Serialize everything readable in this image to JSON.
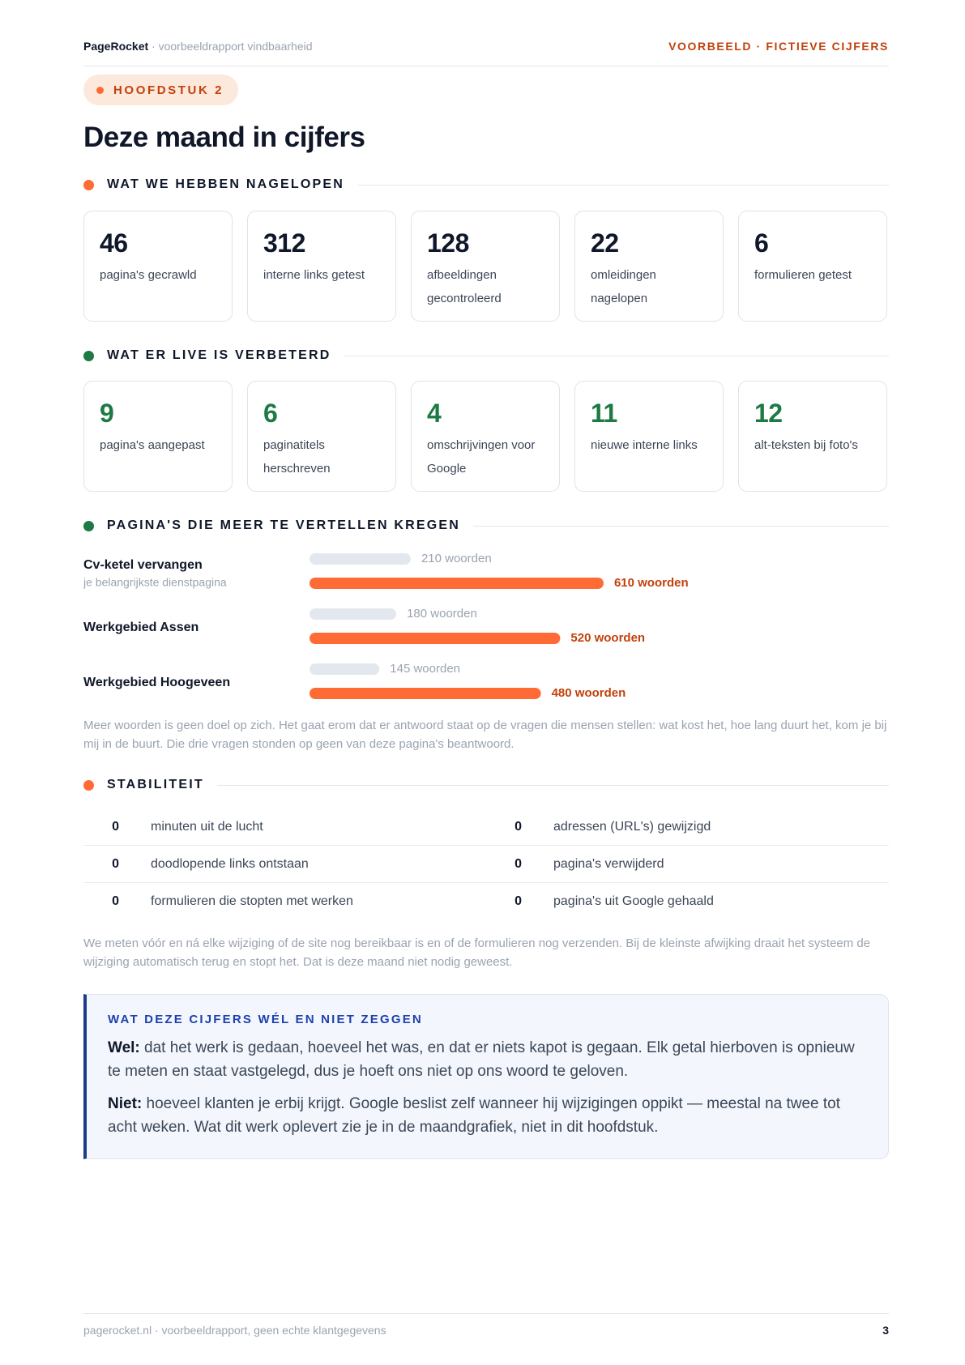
{
  "header": {
    "brand": "PageRocket",
    "subtitle": "· voorbeeldrapport vindbaarheid",
    "badge": "VOORBEELD · FICTIEVE CIJFERS"
  },
  "chapter": "HOOFDSTUK 2",
  "title": "Deze maand in cijfers",
  "checked": {
    "heading": "WAT WE HEBBEN NAGELOPEN",
    "items": [
      {
        "value": 46,
        "label": "pagina's gecrawld"
      },
      {
        "value": 312,
        "label": "interne links getest"
      },
      {
        "value": 128,
        "label": "afbeeldingen gecontroleerd"
      },
      {
        "value": 22,
        "label": "omleidingen nagelopen"
      },
      {
        "value": 6,
        "label": "formulieren getest"
      }
    ]
  },
  "improved": {
    "heading": "WAT ER LIVE IS VERBETERD",
    "items": [
      {
        "value": 9,
        "label": "pagina's aangepast"
      },
      {
        "value": 6,
        "label": "paginatitels herschreven"
      },
      {
        "value": 4,
        "label": "omschrijvingen voor Google"
      },
      {
        "value": 11,
        "label": "nieuwe interne links"
      },
      {
        "value": 12,
        "label": "alt-teksten bij foto's"
      }
    ]
  },
  "pages_heading": "PAGINA'S DIE MEER TE VERTELLEN KREGEN",
  "chart_data": {
    "type": "bar",
    "categories": [
      "Cv-ketel vervangen",
      "Werkgebied Assen",
      "Werkgebied Hoogeveen"
    ],
    "category_notes": [
      "je belangrijkste dienstpagina",
      null,
      null
    ],
    "series": [
      {
        "color": "#e3e8ef",
        "values": [
          210,
          180,
          145
        ],
        "value_labels": [
          "210 woorden",
          "180 woorden",
          "145 woorden"
        ]
      },
      {
        "color": "#ff6b35",
        "values": [
          610,
          520,
          480
        ],
        "value_labels": [
          "610 woorden",
          "520 woorden",
          "480 woorden"
        ]
      }
    ]
  },
  "pages_note": "Meer woorden is geen doel op zich. Het gaat erom dat er antwoord staat op de vragen die mensen stellen: wat kost het, hoe lang duurt het, kom je bij mij in de buurt. Die drie vragen stonden op geen van deze pagina's beantwoord.",
  "stability": {
    "heading": "STABILITEIT",
    "rows": [
      [
        {
          "value": 0,
          "label": "minuten uit de lucht"
        },
        {
          "value": 0,
          "label": "adressen (URL's) gewijzigd"
        }
      ],
      [
        {
          "value": 0,
          "label": "doodlopende links ontstaan"
        },
        {
          "value": 0,
          "label": "pagina's verwijderd"
        }
      ],
      [
        {
          "value": 0,
          "label": "formulieren die stopten met werken"
        },
        {
          "value": 0,
          "label": "pagina's uit Google gehaald"
        }
      ]
    ],
    "note": "We meten vóór en ná elke wijziging of de site nog bereikbaar is en of de formulieren nog verzenden. Bij de kleinste afwijking draait het systeem de wijziging automatisch terug en stopt het. Dat is deze maand niet nodig geweest."
  },
  "callout": {
    "heading": "WAT DEZE CIJFERS WÉL EN NIET ZEGGEN",
    "paragraphs": [
      {
        "lead": "Wel:",
        "text": " dat het werk is gedaan, hoeveel het was, en dat er niets kapot is gegaan. Elk getal hierboven is opnieuw te meten en staat vastgelegd, dus je hoeft ons niet op ons woord te geloven."
      },
      {
        "lead": "Niet:",
        "text": " hoeveel klanten je erbij krijgt. Google beslist zelf wanneer hij wijzigingen oppikt — meestal na twee tot acht weken. Wat dit werk oplevert zie je in de maandgrafiek, niet in dit hoofdstuk."
      }
    ]
  },
  "footer": {
    "text": "pagerocket.nl · voorbeeldrapport, geen echte klantgegevens",
    "page": 3
  }
}
